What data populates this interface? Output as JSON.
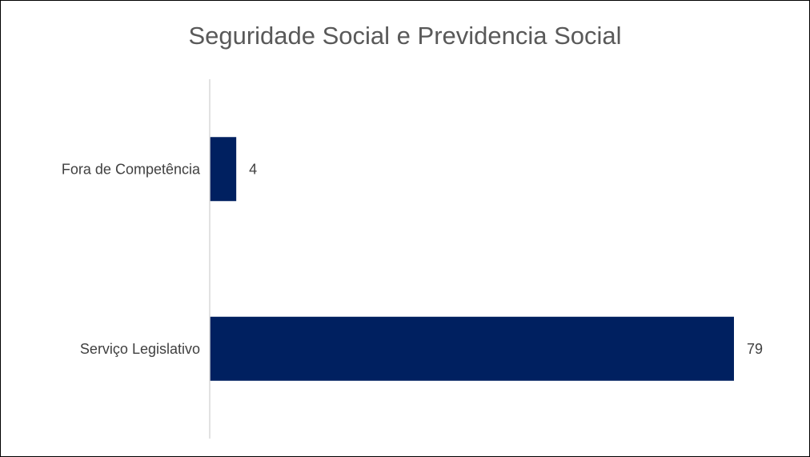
{
  "chart_data": {
    "type": "bar",
    "orientation": "horizontal",
    "title": "Seguridade Social e Previdencia Social",
    "categories": [
      "Fora de Competência",
      "Serviço Legislativo"
    ],
    "values": [
      4,
      79
    ],
    "data_labels": [
      "4",
      "79"
    ],
    "xlim": [
      0,
      79
    ],
    "xlabel": "",
    "ylabel": "",
    "grid": false,
    "legend": "none",
    "bar_color": "#002060",
    "axis_line_color": "#d9d9d9"
  }
}
